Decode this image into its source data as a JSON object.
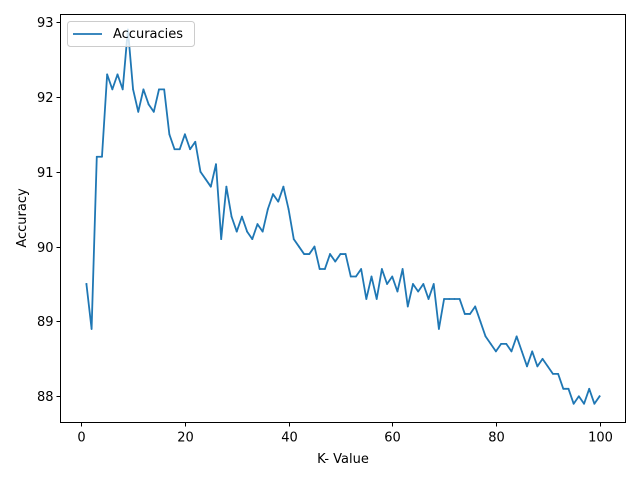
{
  "chart_data": {
    "type": "line",
    "xlabel": "K- Value",
    "ylabel": "Accuracy",
    "xlim": [
      -4.0,
      105.0
    ],
    "ylim": [
      87.65,
      93.1
    ],
    "xticks": [
      0,
      20,
      40,
      60,
      80,
      100
    ],
    "yticks": [
      88,
      89,
      90,
      91,
      92,
      93
    ],
    "grid": false,
    "legend_position": "top-left",
    "colors": {
      "series": "#1f77b4",
      "axes": "#000000",
      "background": "#ffffff"
    },
    "series": [
      {
        "name": "Accuracies",
        "x": [
          1,
          2,
          3,
          4,
          5,
          6,
          7,
          8,
          9,
          10,
          11,
          12,
          13,
          14,
          15,
          16,
          17,
          18,
          19,
          20,
          21,
          22,
          23,
          24,
          25,
          26,
          27,
          28,
          29,
          30,
          31,
          32,
          33,
          34,
          35,
          36,
          37,
          38,
          39,
          40,
          41,
          42,
          43,
          44,
          45,
          46,
          47,
          48,
          49,
          50,
          51,
          52,
          53,
          54,
          55,
          56,
          57,
          58,
          59,
          60,
          61,
          62,
          63,
          64,
          65,
          66,
          67,
          68,
          69,
          70,
          71,
          72,
          73,
          74,
          75,
          76,
          77,
          78,
          79,
          80,
          81,
          82,
          83,
          84,
          85,
          86,
          87,
          88,
          89,
          90,
          91,
          92,
          93,
          94,
          95,
          96,
          97,
          98,
          99,
          100
        ],
        "values": [
          89.5,
          88.9,
          91.2,
          91.2,
          92.3,
          92.1,
          92.3,
          92.1,
          92.9,
          92.1,
          91.8,
          92.1,
          91.9,
          91.8,
          92.1,
          92.1,
          91.5,
          91.3,
          91.3,
          91.5,
          91.3,
          91.4,
          91.0,
          90.9,
          90.8,
          91.1,
          90.1,
          90.8,
          90.4,
          90.2,
          90.4,
          90.2,
          90.1,
          90.3,
          90.2,
          90.5,
          90.7,
          90.6,
          90.8,
          90.5,
          90.1,
          90.0,
          89.9,
          89.9,
          90.0,
          89.7,
          89.7,
          89.9,
          89.8,
          89.9,
          89.9,
          89.6,
          89.6,
          89.7,
          89.3,
          89.6,
          89.3,
          89.7,
          89.5,
          89.6,
          89.4,
          89.7,
          89.2,
          89.5,
          89.4,
          89.5,
          89.3,
          89.5,
          88.9,
          89.3,
          89.3,
          89.3,
          89.3,
          89.1,
          89.1,
          89.2,
          89.0,
          88.8,
          88.7,
          88.6,
          88.7,
          88.7,
          88.6,
          88.8,
          88.6,
          88.4,
          88.6,
          88.4,
          88.5,
          88.4,
          88.3,
          88.3,
          88.1,
          88.1,
          87.9,
          88.0,
          87.9,
          88.1,
          87.9,
          88.0
        ]
      }
    ]
  }
}
